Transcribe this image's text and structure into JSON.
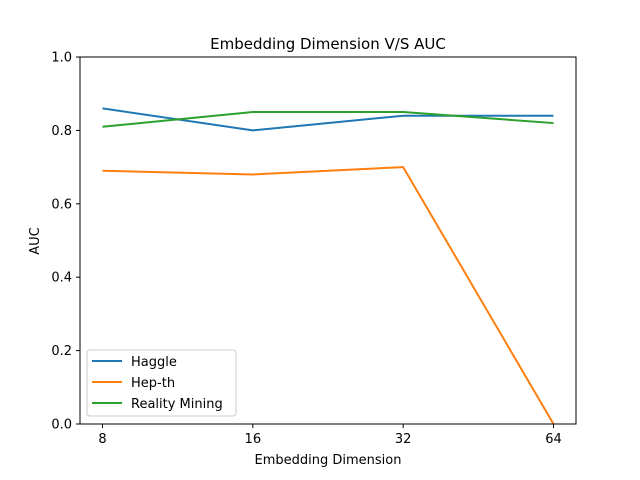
{
  "chart_data": {
    "type": "line",
    "title": "Embedding Dimension V/S AUC",
    "xlabel": "Embedding Dimension",
    "ylabel": "AUC",
    "x": [
      "8",
      "16",
      "32",
      "64"
    ],
    "ylim": [
      0.0,
      1.0
    ],
    "yticks": [
      "0.0",
      "0.2",
      "0.4",
      "0.6",
      "0.8",
      "1.0"
    ],
    "grid": false,
    "legend_position": "lower-left",
    "series": [
      {
        "name": "Haggle",
        "color": "#1f77b4",
        "values": [
          0.86,
          0.8,
          0.84,
          0.84
        ]
      },
      {
        "name": "Hep-th",
        "color": "#ff7f0e",
        "values": [
          0.69,
          0.68,
          0.7,
          0.0
        ]
      },
      {
        "name": "Reality Mining",
        "color": "#2ca02c",
        "values": [
          0.81,
          0.85,
          0.85,
          0.82
        ]
      }
    ]
  }
}
